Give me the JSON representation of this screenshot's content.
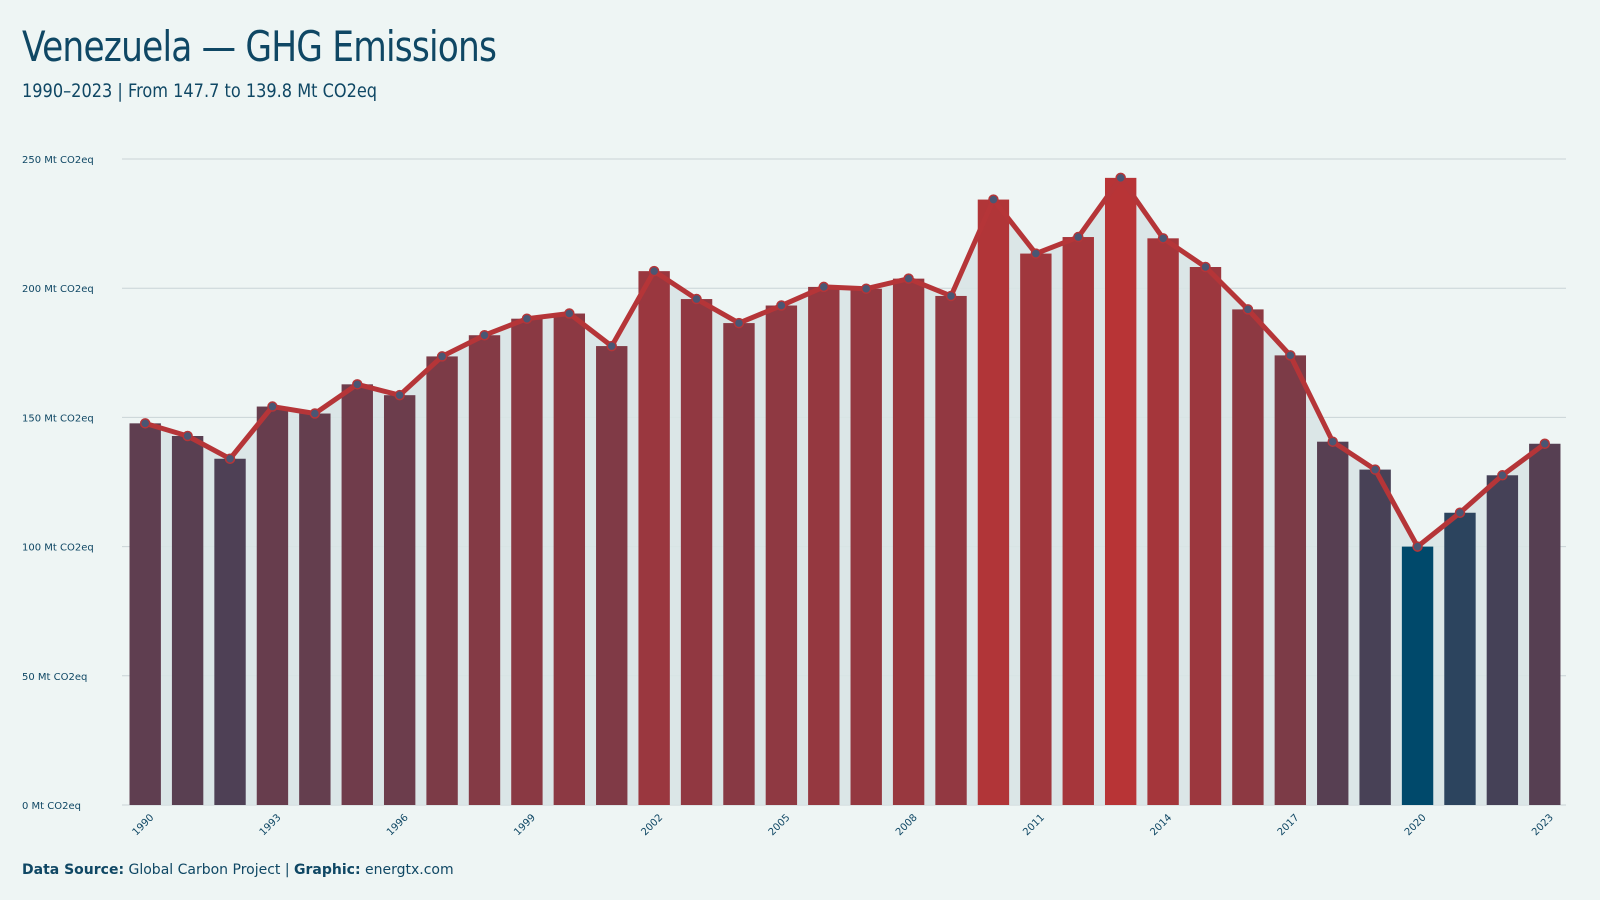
{
  "header": {
    "title": "Venezuela — GHG Emissions",
    "subtitle": "1990–2023 | From 147.7  to 139.8 Mt CO2eq"
  },
  "footer": {
    "source_label": "Data Source:",
    "source_value": "Global Carbon Project",
    "separator": "|",
    "graphic_label": "Graphic:",
    "graphic_value": "energtx.com"
  },
  "colors": {
    "background": "#eef5f4",
    "line": "#b53538",
    "low": "#00496b",
    "high": "#b83436",
    "area": "#d8e4e6",
    "point": "#4a5673"
  },
  "chart_data": {
    "type": "bar",
    "overlay": "line",
    "years": [
      1990,
      1991,
      1992,
      1993,
      1994,
      1995,
      1996,
      1997,
      1998,
      1999,
      2000,
      2001,
      2002,
      2003,
      2004,
      2005,
      2006,
      2007,
      2008,
      2009,
      2010,
      2011,
      2012,
      2013,
      2014,
      2015,
      2016,
      2017,
      2018,
      2019,
      2020,
      2021,
      2022,
      2023
    ],
    "values": [
      147.7,
      142.8,
      134.0,
      154.2,
      151.5,
      162.8,
      158.6,
      173.6,
      181.8,
      188.2,
      190.2,
      177.6,
      206.6,
      195.8,
      186.5,
      193.3,
      200.5,
      199.8,
      203.7,
      197.0,
      234.3,
      213.4,
      219.8,
      242.7,
      219.3,
      208.2,
      191.8,
      174.0,
      140.6,
      129.8,
      100.0,
      113.1,
      127.6,
      139.8
    ],
    "x_tick_labels": [
      "1990",
      "1993",
      "1996",
      "1999",
      "2002",
      "2005",
      "2008",
      "2011",
      "2014",
      "2017",
      "2020",
      "2023"
    ],
    "y_ticks": [
      0,
      50,
      100,
      150,
      200,
      250
    ],
    "y_tick_labels": [
      "0 Mt CO2eq",
      "50 Mt CO2eq",
      "100 Mt CO2eq",
      "150 Mt CO2eq",
      "200 Mt CO2eq",
      "250 Mt CO2eq"
    ],
    "ylim": [
      0,
      250
    ],
    "grid": true,
    "legend": "none"
  }
}
